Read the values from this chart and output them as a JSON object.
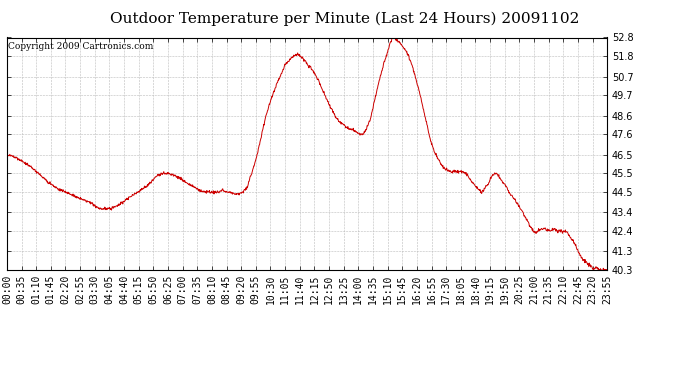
{
  "title": "Outdoor Temperature per Minute (Last 24 Hours) 20091102",
  "copyright_text": "Copyright 2009 Cartronics.com",
  "line_color": "#cc0000",
  "background_color": "#ffffff",
  "grid_color": "#bbbbbb",
  "ylim": [
    40.3,
    52.8
  ],
  "yticks": [
    40.3,
    41.3,
    42.4,
    43.4,
    44.5,
    45.5,
    46.5,
    47.6,
    48.6,
    49.7,
    50.7,
    51.8,
    52.8
  ],
  "title_fontsize": 11,
  "tick_fontsize": 7,
  "copyright_fontsize": 6.5,
  "keypoints": [
    [
      0,
      46.5
    ],
    [
      20,
      46.4
    ],
    [
      40,
      46.1
    ],
    [
      60,
      45.8
    ],
    [
      80,
      45.4
    ],
    [
      100,
      45.0
    ],
    [
      120,
      44.7
    ],
    [
      150,
      44.4
    ],
    [
      180,
      44.1
    ],
    [
      200,
      43.9
    ],
    [
      215,
      43.7
    ],
    [
      225,
      43.6
    ],
    [
      240,
      43.6
    ],
    [
      260,
      43.7
    ],
    [
      280,
      44.0
    ],
    [
      300,
      44.3
    ],
    [
      320,
      44.6
    ],
    [
      340,
      44.9
    ],
    [
      355,
      45.3
    ],
    [
      370,
      45.5
    ],
    [
      385,
      45.5
    ],
    [
      400,
      45.4
    ],
    [
      415,
      45.2
    ],
    [
      430,
      45.0
    ],
    [
      445,
      44.8
    ],
    [
      460,
      44.6
    ],
    [
      475,
      44.5
    ],
    [
      490,
      44.5
    ],
    [
      505,
      44.5
    ],
    [
      515,
      44.6
    ],
    [
      525,
      44.5
    ],
    [
      535,
      44.5
    ],
    [
      545,
      44.4
    ],
    [
      555,
      44.4
    ],
    [
      565,
      44.5
    ],
    [
      575,
      44.8
    ],
    [
      585,
      45.5
    ],
    [
      595,
      46.2
    ],
    [
      605,
      47.2
    ],
    [
      615,
      48.2
    ],
    [
      625,
      49.0
    ],
    [
      635,
      49.7
    ],
    [
      645,
      50.3
    ],
    [
      655,
      50.8
    ],
    [
      665,
      51.3
    ],
    [
      675,
      51.6
    ],
    [
      685,
      51.8
    ],
    [
      693,
      51.9
    ],
    [
      700,
      51.8
    ],
    [
      710,
      51.6
    ],
    [
      715,
      51.5
    ],
    [
      720,
      51.3
    ],
    [
      730,
      51.1
    ],
    [
      740,
      50.7
    ],
    [
      750,
      50.2
    ],
    [
      760,
      49.7
    ],
    [
      770,
      49.2
    ],
    [
      780,
      48.8
    ],
    [
      790,
      48.4
    ],
    [
      800,
      48.2
    ],
    [
      810,
      48.0
    ],
    [
      820,
      47.9
    ],
    [
      830,
      47.8
    ],
    [
      840,
      47.7
    ],
    [
      845,
      47.6
    ],
    [
      850,
      47.6
    ],
    [
      855,
      47.7
    ],
    [
      860,
      47.9
    ],
    [
      870,
      48.5
    ],
    [
      880,
      49.5
    ],
    [
      890,
      50.5
    ],
    [
      900,
      51.3
    ],
    [
      910,
      52.0
    ],
    [
      916,
      52.5
    ],
    [
      920,
      52.7
    ],
    [
      925,
      52.8
    ],
    [
      930,
      52.7
    ],
    [
      940,
      52.5
    ],
    [
      950,
      52.2
    ],
    [
      960,
      51.8
    ],
    [
      970,
      51.2
    ],
    [
      980,
      50.4
    ],
    [
      990,
      49.5
    ],
    [
      1000,
      48.5
    ],
    [
      1010,
      47.5
    ],
    [
      1020,
      46.8
    ],
    [
      1030,
      46.3
    ],
    [
      1040,
      45.9
    ],
    [
      1050,
      45.7
    ],
    [
      1060,
      45.6
    ],
    [
      1070,
      45.6
    ],
    [
      1080,
      45.6
    ],
    [
      1090,
      45.6
    ],
    [
      1100,
      45.4
    ],
    [
      1110,
      45.1
    ],
    [
      1120,
      44.8
    ],
    [
      1130,
      44.6
    ],
    [
      1135,
      44.5
    ],
    [
      1140,
      44.6
    ],
    [
      1150,
      44.9
    ],
    [
      1158,
      45.3
    ],
    [
      1165,
      45.5
    ],
    [
      1170,
      45.5
    ],
    [
      1175,
      45.4
    ],
    [
      1180,
      45.2
    ],
    [
      1190,
      44.9
    ],
    [
      1200,
      44.5
    ],
    [
      1210,
      44.2
    ],
    [
      1220,
      43.9
    ],
    [
      1230,
      43.5
    ],
    [
      1240,
      43.1
    ],
    [
      1250,
      42.7
    ],
    [
      1258,
      42.4
    ],
    [
      1265,
      42.3
    ],
    [
      1270,
      42.4
    ],
    [
      1280,
      42.5
    ],
    [
      1288,
      42.5
    ],
    [
      1295,
      42.4
    ],
    [
      1300,
      42.4
    ],
    [
      1305,
      42.5
    ],
    [
      1310,
      42.5
    ],
    [
      1315,
      42.4
    ],
    [
      1320,
      42.4
    ],
    [
      1325,
      42.4
    ],
    [
      1330,
      42.3
    ],
    [
      1335,
      42.4
    ],
    [
      1340,
      42.3
    ],
    [
      1350,
      42.0
    ],
    [
      1360,
      41.6
    ],
    [
      1370,
      41.1
    ],
    [
      1380,
      40.8
    ],
    [
      1390,
      40.6
    ],
    [
      1400,
      40.4
    ],
    [
      1410,
      40.4
    ],
    [
      1420,
      40.3
    ],
    [
      1430,
      40.3
    ],
    [
      1435,
      40.3
    ]
  ]
}
